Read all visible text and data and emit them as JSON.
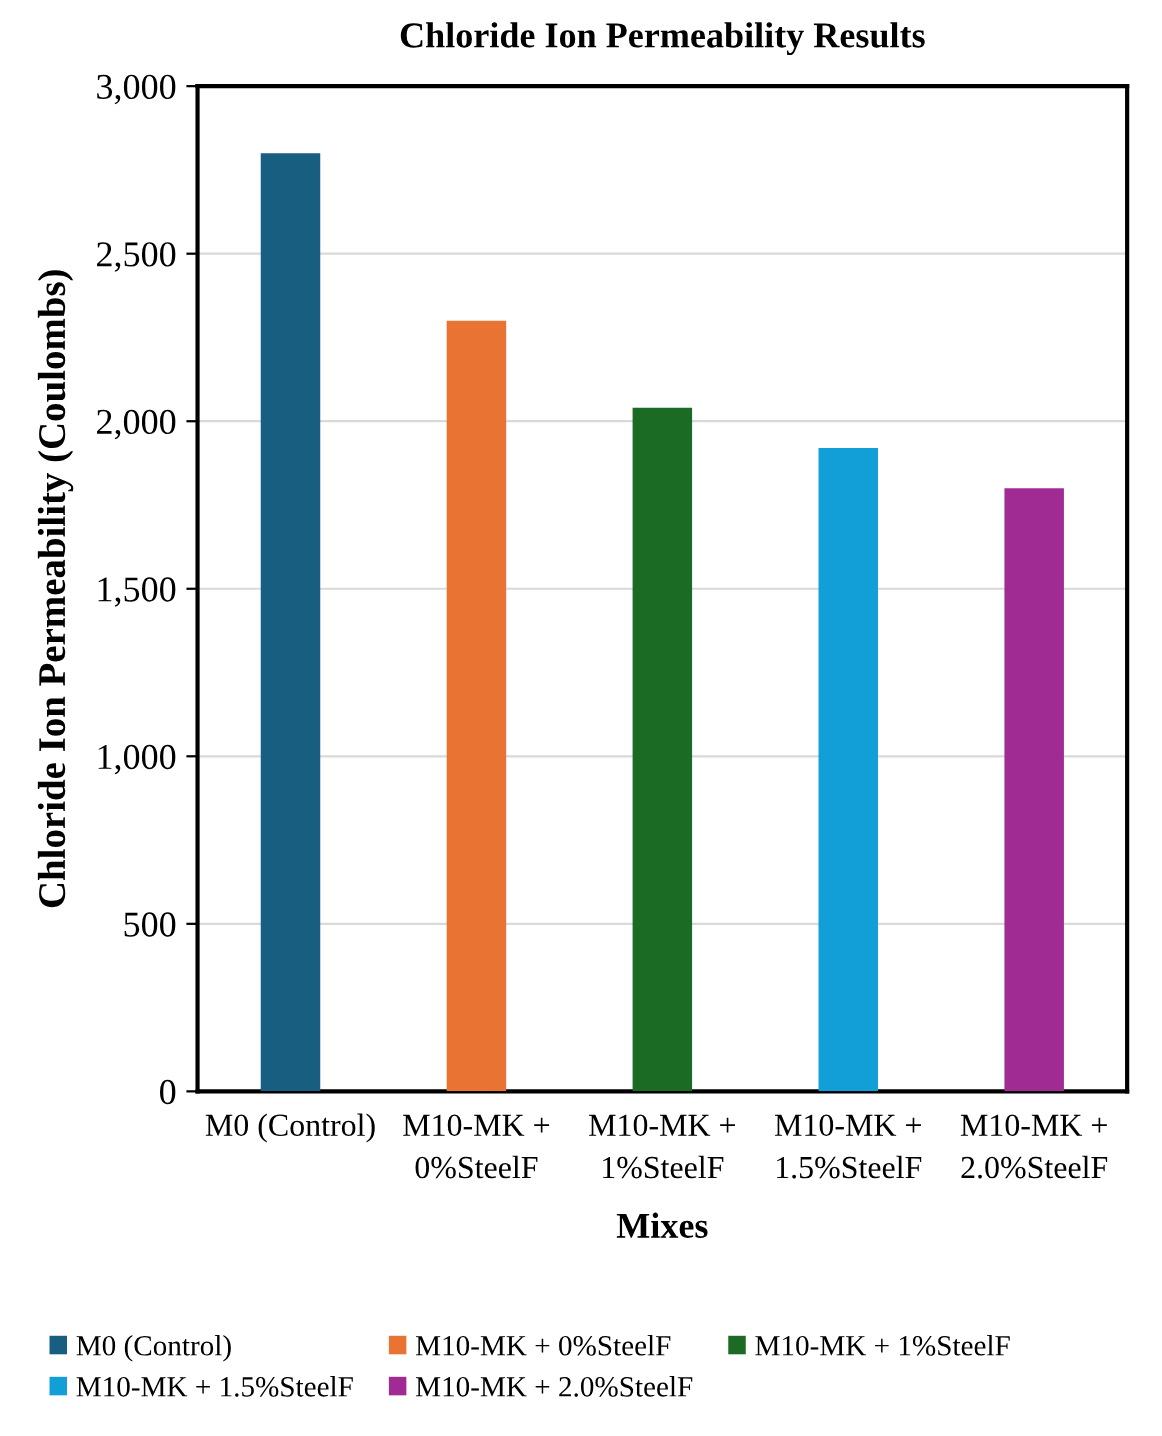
{
  "chart_data": {
    "type": "bar",
    "title": "Chloride Ion Permeability Results",
    "xlabel": "Mixes",
    "ylabel": "Chloride Ion Permeability (Coulombs)",
    "categories": [
      "M0 (Control)",
      "M10-MK +\n0%SteelF",
      "M10-MK +\n1%SteelF",
      "M10-MK +\n1.5%SteelF",
      "M10-MK +\n2.0%SteelF"
    ],
    "series": [
      {
        "name": "M0 (Control)",
        "color": "#175e80",
        "values": [
          2800,
          null,
          null,
          null,
          null
        ]
      },
      {
        "name": "M10-MK + 0%SteelF",
        "color": "#e87333",
        "values": [
          null,
          2300,
          null,
          null,
          null
        ]
      },
      {
        "name": "M10-MK + 1%SteelF",
        "color": "#1b6b25",
        "values": [
          null,
          null,
          2040,
          null,
          null
        ]
      },
      {
        "name": "M10-MK + 1.5%SteelF",
        "color": "#129fd8",
        "values": [
          null,
          null,
          null,
          1920,
          null
        ]
      },
      {
        "name": "M10-MK + 2.0%SteelF",
        "color": "#a02c93",
        "values": [
          null,
          null,
          null,
          null,
          1800
        ]
      }
    ],
    "ylim": [
      0,
      3000
    ],
    "yticks": [
      {
        "value": 0,
        "label": "0"
      },
      {
        "value": 500,
        "label": "500"
      },
      {
        "value": 1000,
        "label": "1,000"
      },
      {
        "value": 1500,
        "label": "1,500"
      },
      {
        "value": 2000,
        "label": "2,000"
      },
      {
        "value": 2500,
        "label": "2,500"
      },
      {
        "value": 3000,
        "label": "3,000"
      }
    ],
    "grid": "y",
    "legend": "bottom"
  }
}
